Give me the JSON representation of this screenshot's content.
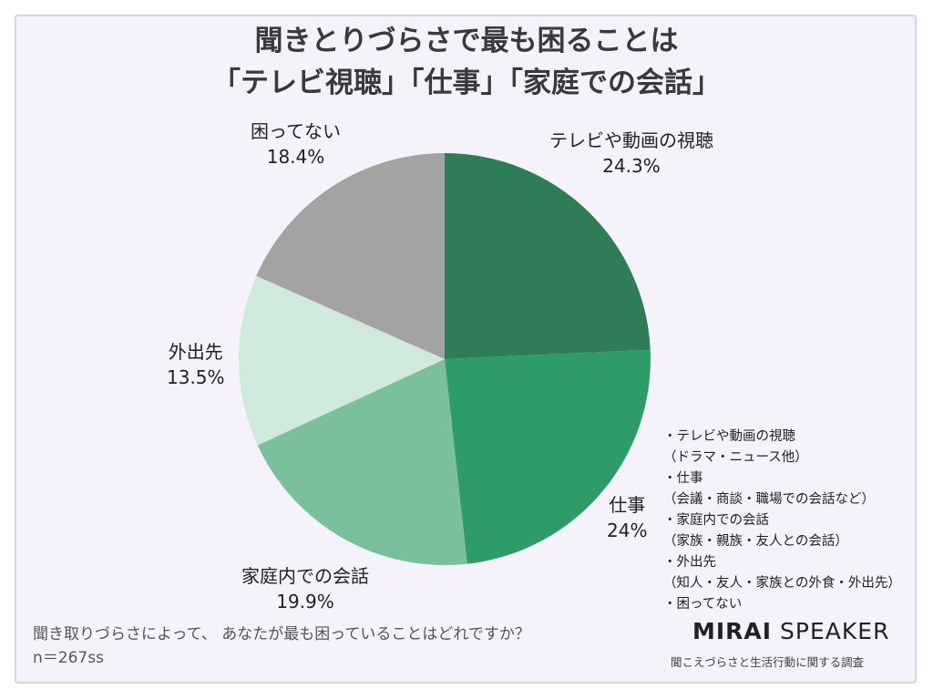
{
  "title_lines": [
    "聞きとりづらさで最も困ることは",
    "「テレビ視聴」「仕事」「家庭での会話」"
  ],
  "chart_data": {
    "type": "pie",
    "slices": [
      {
        "label": "テレビや動画の視聴",
        "value": 24.3,
        "display": "24.3%",
        "color": "#2f7d57"
      },
      {
        "label": "仕事",
        "value": 24.0,
        "display": "24%",
        "color": "#2e9c67"
      },
      {
        "label": "家庭内での会話",
        "value": 19.9,
        "display": "19.9%",
        "color": "#79c09b"
      },
      {
        "label": "外出先",
        "value": 13.5,
        "display": "13.5%",
        "color": "#cfe9dc"
      },
      {
        "label": "困ってない",
        "value": 18.4,
        "display": "18.4%",
        "color": "#a3a3a3"
      }
    ]
  },
  "notes": [
    "・テレビや動画の視聴",
    "（ドラマ・ニュース他）",
    "・仕事",
    "（会議・商談・職場での会話など）",
    "・家庭内での会話",
    "（家族・親族・友人との会話）",
    "・外出先",
    "（知人・友人・家族との外食・外出先）",
    "・困ってない"
  ],
  "question": "聞き取りづらさによって、 あなたが最も困っていることはどれですか？",
  "sample": "n＝267ss",
  "brand": {
    "strong": "MIRAI",
    "light": "SPEAKER",
    "subtitle": "聞こえづらさと生活行動に関する調査"
  }
}
